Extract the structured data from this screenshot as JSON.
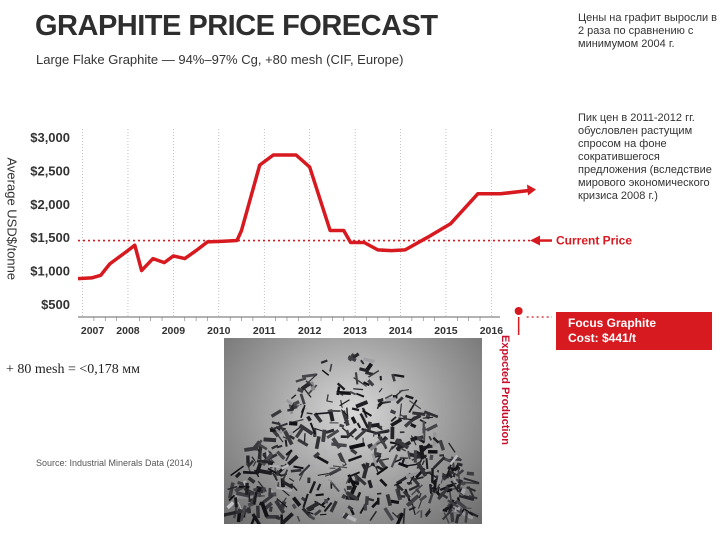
{
  "header": {
    "title": "GRAPHITE PRICE FORECAST",
    "subtitle": "Large Flake Graphite — 94%–97% Cg, +80 mesh (CIF, Europe)"
  },
  "notes": {
    "note1": "Цены на графит выросли в 2 раза по сравнению с минимумом 2004 г.",
    "note2": "Пик цен в 2011-2012 гг. обусловлен растущим спросом на фоне сократившегося предложения (вследствие мирового экономического кризиса 2008 г.)"
  },
  "chart_data": {
    "type": "line",
    "title": "GRAPHITE PRICE FORECAST",
    "subtitle": "Large Flake Graphite — 94%–97% Cg, +80 mesh (CIF, Europe)",
    "ylabel": "Average USD$/tonne",
    "xlabel": "",
    "x_ticks": [
      "2007",
      "2008",
      "2009",
      "2010",
      "2011",
      "2012",
      "2013",
      "2014",
      "2015",
      "2016"
    ],
    "y_ticks": [
      "$500",
      "$1,000",
      "$1,500",
      "$2,000",
      "$2,500",
      "$3,000"
    ],
    "xlim": [
      2006.9,
      2016.85
    ],
    "ylim": [
      500,
      3000
    ],
    "grid": "vertical",
    "series": [
      {
        "color": "#d71920",
        "points": [
          [
            2006.9,
            880
          ],
          [
            2007.2,
            890
          ],
          [
            2007.4,
            930
          ],
          [
            2007.6,
            1100
          ],
          [
            2007.9,
            1250
          ],
          [
            2008.15,
            1380
          ],
          [
            2008.3,
            1000
          ],
          [
            2008.55,
            1180
          ],
          [
            2008.8,
            1120
          ],
          [
            2009.0,
            1220
          ],
          [
            2009.25,
            1180
          ],
          [
            2009.5,
            1300
          ],
          [
            2009.75,
            1430
          ],
          [
            2010.1,
            1440
          ],
          [
            2010.4,
            1450
          ],
          [
            2010.5,
            1600
          ],
          [
            2010.9,
            2580
          ],
          [
            2011.2,
            2730
          ],
          [
            2011.7,
            2730
          ],
          [
            2012.0,
            2550
          ],
          [
            2012.45,
            1600
          ],
          [
            2012.75,
            1600
          ],
          [
            2012.9,
            1420
          ],
          [
            2013.2,
            1420
          ],
          [
            2013.5,
            1310
          ],
          [
            2013.8,
            1300
          ],
          [
            2014.1,
            1310
          ],
          [
            2014.6,
            1500
          ],
          [
            2015.1,
            1700
          ],
          [
            2015.7,
            2150
          ],
          [
            2016.2,
            2150
          ],
          [
            2016.85,
            2200
          ]
        ]
      }
    ],
    "annotations": {
      "current_price_label": "Current Price",
      "current_price_value": 1450,
      "expected_production_label": "Expected Production",
      "expected_production_x": 2016.6,
      "focus_line1": "Focus Graphite",
      "focus_line2": "Cost: $441/t"
    }
  },
  "caption": {
    "mesh": "+ 80 mesh  =  <0,178 мм",
    "source": "Source: Industrial Minerals Data (2014)"
  }
}
